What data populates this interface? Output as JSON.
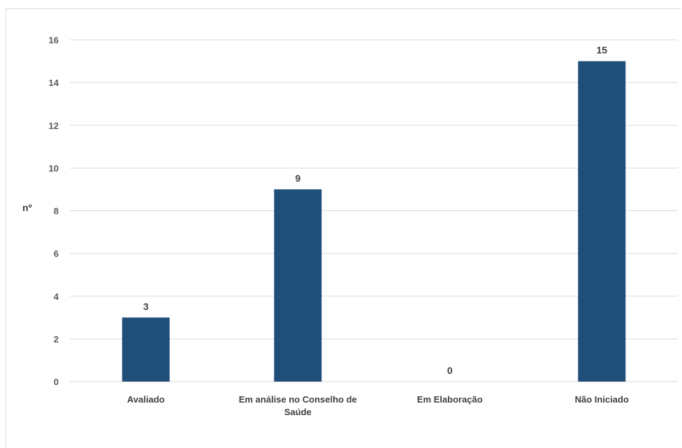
{
  "chart_data": {
    "type": "bar",
    "categories": [
      "Avaliado",
      "Em análise no Conselho de Saúde",
      "Em Elaboração",
      "Não Iniciado"
    ],
    "category_lines": [
      [
        "Avaliado"
      ],
      [
        "Em análise no Conselho de",
        "Saúde"
      ],
      [
        "Em Elaboração"
      ],
      [
        "Não Iniciado"
      ]
    ],
    "values": [
      3,
      9,
      0,
      15
    ],
    "data_labels": [
      "3",
      "9",
      "0",
      "15"
    ],
    "title": "",
    "xlabel": "",
    "ylabel": "nº",
    "ylim": [
      0,
      16
    ],
    "yticks": [
      0,
      2,
      4,
      6,
      8,
      10,
      12,
      14,
      16
    ],
    "grid": true,
    "legend": "none",
    "bar_color": "#1f4e79",
    "grid_color": "#d9d9d9"
  }
}
